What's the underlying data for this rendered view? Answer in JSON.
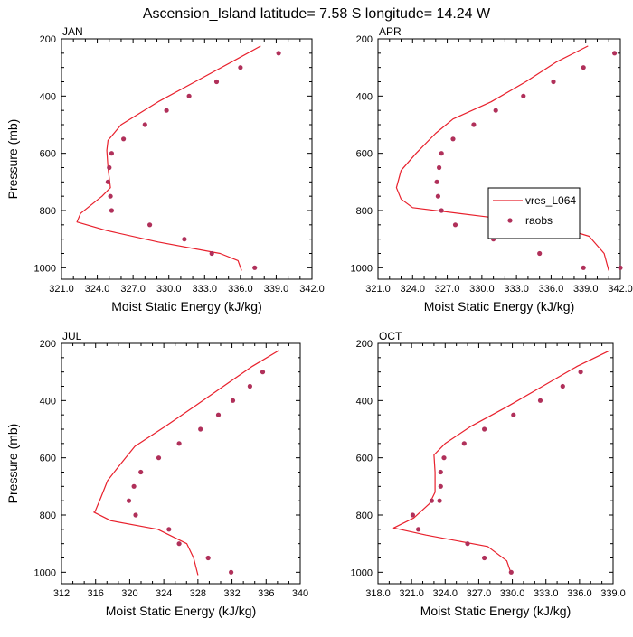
{
  "title": "Ascension_Island  latitude= 7.58 S longitude= 14.24 W",
  "colors": {
    "line": "#e8202c",
    "points": "#b0305a",
    "frame": "#000000"
  },
  "legend": {
    "line_label": "vres_L064",
    "points_label": "raobs"
  },
  "chart_data": [
    {
      "type": "line",
      "panel": "JAN",
      "xlabel": "Moist Static Energy (kJ/kg)",
      "ylabel": "Pressure (mb)",
      "xlim": [
        321,
        342
      ],
      "ylim": [
        200,
        1040
      ],
      "y_inverted": true,
      "xticks": [
        321,
        324,
        327,
        330,
        333,
        336,
        339,
        342
      ],
      "xtick_labels": [
        "321.0",
        "324.0",
        "327.0",
        "330.0",
        "333.0",
        "336.0",
        "339.0",
        "342.0"
      ],
      "yticks": [
        200,
        400,
        600,
        800,
        1000
      ],
      "series": [
        {
          "name": "vres_L064",
          "style": "line",
          "x": [
            337.7,
            335.3,
            332.2,
            329.1,
            326.0,
            324.9,
            324.8,
            324.9,
            325.1,
            324.4,
            322.6,
            322.3,
            324.8,
            329.1,
            334.3,
            335.8,
            336.1
          ],
          "y": [
            225,
            280,
            350,
            420,
            500,
            555,
            590,
            650,
            720,
            750,
            810,
            840,
            870,
            910,
            950,
            975,
            1010
          ]
        },
        {
          "name": "raobs",
          "style": "points",
          "x": [
            339.2,
            336.0,
            334.0,
            331.7,
            329.8,
            328.0,
            326.2,
            325.2,
            325.0,
            324.9,
            325.1,
            325.2,
            328.4,
            331.3,
            333.6,
            337.2
          ],
          "y": [
            250,
            300,
            350,
            400,
            450,
            500,
            550,
            600,
            650,
            700,
            750,
            800,
            850,
            900,
            950,
            1000
          ]
        }
      ]
    },
    {
      "type": "line",
      "panel": "APR",
      "xlabel": "Moist Static Energy (kJ/kg)",
      "ylabel": "",
      "xlim": [
        321,
        342
      ],
      "ylim": [
        200,
        1040
      ],
      "y_inverted": true,
      "xticks": [
        321,
        324,
        327,
        330,
        333,
        336,
        339,
        342
      ],
      "xtick_labels": [
        "321.0",
        "324.0",
        "327.0",
        "330.0",
        "333.0",
        "336.0",
        "339.0",
        "342.0"
      ],
      "yticks": [
        200,
        400,
        600,
        800,
        1000
      ],
      "series": [
        {
          "name": "vres_L064",
          "style": "line",
          "x": [
            339.2,
            336.5,
            333.8,
            330.8,
            327.5,
            326.0,
            324.3,
            323.0,
            322.6,
            323.0,
            324.0,
            330.0,
            336.0,
            339.3,
            340.6,
            341.0
          ],
          "y": [
            225,
            280,
            350,
            420,
            480,
            530,
            600,
            660,
            720,
            760,
            790,
            820,
            850,
            890,
            950,
            1010
          ]
        },
        {
          "name": "raobs",
          "style": "points",
          "x": [
            341.5,
            338.8,
            336.2,
            333.6,
            331.2,
            329.3,
            327.5,
            326.5,
            326.3,
            326.1,
            326.2,
            326.5,
            327.7,
            331.0,
            335.0,
            338.8,
            342.0
          ],
          "y": [
            250,
            300,
            350,
            400,
            450,
            500,
            550,
            600,
            650,
            700,
            750,
            800,
            850,
            900,
            950,
            1000,
            1000
          ]
        }
      ]
    },
    {
      "type": "line",
      "panel": "JUL",
      "xlabel": "Moist Static Energy (kJ/kg)",
      "ylabel": "Pressure (mb)",
      "xlim": [
        312,
        340
      ],
      "ylim": [
        200,
        1040
      ],
      "y_inverted": true,
      "xticks": [
        312,
        316,
        320,
        324,
        328,
        332,
        336,
        340
      ],
      "xtick_labels": [
        "312",
        "316",
        "320",
        "324",
        "328",
        "332",
        "336",
        "340"
      ],
      "yticks": [
        200,
        400,
        600,
        800,
        1000
      ],
      "series": [
        {
          "name": "vres_L064",
          "style": "line",
          "x": [
            337.5,
            334.4,
            331.0,
            327.6,
            324.2,
            320.6,
            318.7,
            317.4,
            316.6,
            315.9,
            315.8,
            317.8,
            323.3,
            326.7,
            327.5,
            328.0
          ],
          "y": [
            225,
            280,
            350,
            420,
            490,
            560,
            630,
            680,
            740,
            790,
            790,
            820,
            850,
            900,
            950,
            1010
          ]
        },
        {
          "name": "raobs",
          "style": "points",
          "x": [
            335.6,
            334.1,
            332.1,
            330.4,
            328.3,
            325.8,
            323.4,
            321.3,
            320.5,
            319.9,
            320.7,
            324.6,
            325.8,
            329.2,
            331.9
          ],
          "y": [
            300,
            350,
            400,
            450,
            500,
            550,
            600,
            650,
            700,
            750,
            800,
            850,
            900,
            950,
            1000
          ]
        }
      ]
    },
    {
      "type": "line",
      "panel": "OCT",
      "xlabel": "Moist Static Energy (kJ/kg)",
      "ylabel": "",
      "xlim": [
        318,
        339
      ],
      "ylim": [
        200,
        1040
      ],
      "y_inverted": true,
      "xticks": [
        318,
        321,
        324,
        327,
        330,
        333,
        336,
        339
      ],
      "xtick_labels": [
        "318.0",
        "321.0",
        "324.0",
        "327.0",
        "330.0",
        "333.0",
        "336.0",
        "339.0"
      ],
      "yticks": [
        200,
        400,
        600,
        800,
        1000
      ],
      "series": [
        {
          "name": "vres_L064",
          "style": "line",
          "x": [
            338.7,
            335.8,
            332.7,
            329.6,
            326.3,
            324.0,
            323.0,
            323.1,
            323.1,
            322.6,
            321.2,
            319.4,
            322.3,
            327.8,
            329.5,
            329.9
          ],
          "y": [
            225,
            280,
            350,
            420,
            490,
            550,
            590,
            650,
            720,
            760,
            810,
            845,
            870,
            910,
            960,
            1005
          ]
        },
        {
          "name": "raobs",
          "style": "points",
          "x": [
            336.1,
            334.5,
            332.5,
            330.1,
            327.5,
            325.7,
            323.9,
            323.6,
            323.6,
            323.5,
            322.8,
            321.1,
            321.6,
            326.0,
            327.5,
            329.9
          ],
          "y": [
            300,
            350,
            400,
            450,
            500,
            550,
            600,
            650,
            700,
            750,
            750,
            800,
            850,
            900,
            950,
            1000
          ]
        }
      ]
    }
  ]
}
